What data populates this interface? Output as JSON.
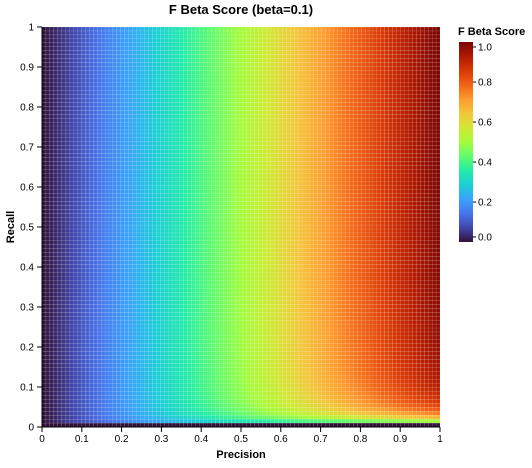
{
  "chart_data": {
    "type": "heatmap",
    "title": "F Beta Score (beta=0.1)",
    "xlabel": "Precision",
    "ylabel": "Recall",
    "xlim": [
      0,
      1
    ],
    "ylim": [
      0,
      1
    ],
    "beta": 0.1,
    "grid_steps": 100,
    "formula": "(1 + beta^2) * precision * recall / (beta^2 * precision + recall)",
    "x_ticks": [
      "0",
      "0.1",
      "0.2",
      "0.3",
      "0.4",
      "0.5",
      "0.6",
      "0.7",
      "0.8",
      "0.9",
      "1"
    ],
    "y_ticks": [
      "0",
      "0.1",
      "0.2",
      "0.3",
      "0.4",
      "0.5",
      "0.6",
      "0.7",
      "0.8",
      "0.9",
      "1"
    ],
    "legend": {
      "title": "F Beta Score",
      "placement": "right",
      "ticks": [
        "0.0",
        "0.2",
        "0.4",
        "0.6",
        "0.8",
        "1.0"
      ],
      "range": [
        0,
        1
      ]
    },
    "colormap": "turbo",
    "colormap_stops": [
      "#30123b",
      "#4145ab",
      "#4675ed",
      "#39a2fc",
      "#1bcfd4",
      "#24eca6",
      "#61fc6c",
      "#a4fc3b",
      "#d1e834",
      "#f3c63a",
      "#fe9b2d",
      "#f36315",
      "#d93806",
      "#b11901",
      "#7a0403"
    ]
  }
}
